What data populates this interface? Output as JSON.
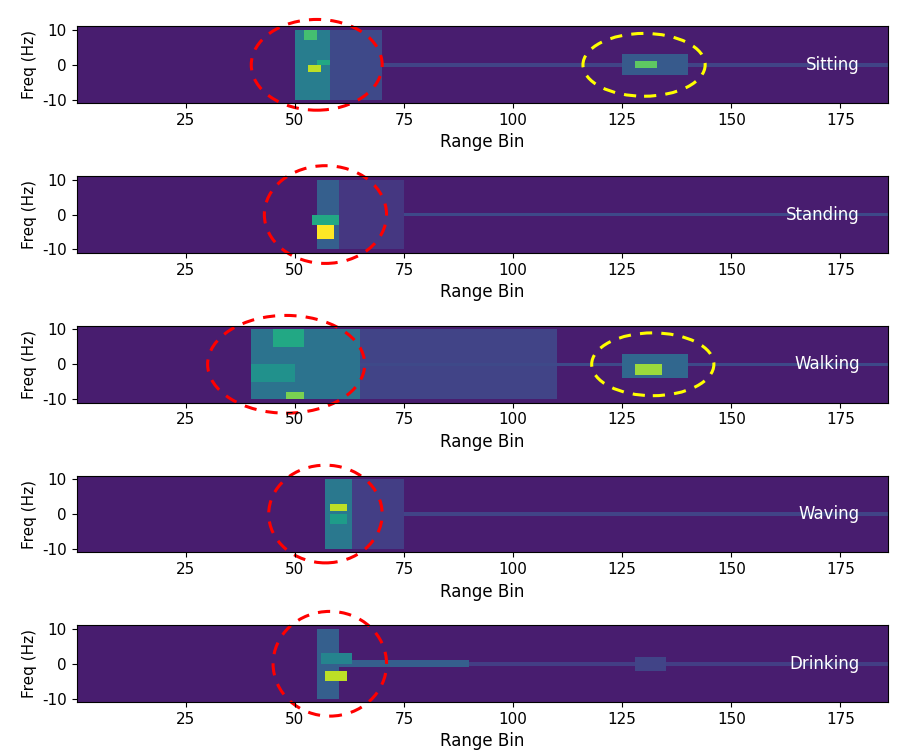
{
  "chart_data": [
    {
      "type": "heatmap",
      "annotation": "Sitting",
      "xlabel": "Range Bin",
      "ylabel": "Freq (Hz)",
      "xlim": [
        0,
        186
      ],
      "ylim": [
        -11,
        11
      ],
      "xticks": [
        25,
        50,
        75,
        100,
        125,
        150,
        175
      ],
      "yticks": [
        -10,
        0,
        10
      ],
      "color_range": [
        0,
        1
      ],
      "background": 0.08,
      "cells": [
        {
          "range": [
            60,
            186
          ],
          "freq": [
            -0.5,
            0.5
          ],
          "value": 0.2
        },
        {
          "range": [
            58,
            70
          ],
          "freq": [
            -10,
            10
          ],
          "value": 0.22
        },
        {
          "range": [
            50,
            58
          ],
          "freq": [
            -10,
            10
          ],
          "value": 0.42
        },
        {
          "range": [
            52,
            55
          ],
          "freq": [
            7,
            10
          ],
          "value": 0.7
        },
        {
          "range": [
            55,
            58
          ],
          "freq": [
            0,
            1.5
          ],
          "value": 0.6
        },
        {
          "range": [
            53,
            56
          ],
          "freq": [
            -2,
            0
          ],
          "value": 0.9
        },
        {
          "range": [
            125,
            140
          ],
          "freq": [
            -3,
            3
          ],
          "value": 0.28
        },
        {
          "range": [
            128,
            133
          ],
          "freq": [
            -1,
            1
          ],
          "value": 0.75
        }
      ]
    },
    {
      "type": "heatmap",
      "annotation": "Standing",
      "xlabel": "Range Bin",
      "ylabel": "Freq (Hz)",
      "xlim": [
        0,
        186
      ],
      "ylim": [
        -11,
        11
      ],
      "xticks": [
        25,
        50,
        75,
        100,
        125,
        150,
        175
      ],
      "yticks": [
        -10,
        0,
        10
      ],
      "color_range": [
        0,
        1
      ],
      "background": 0.08,
      "cells": [
        {
          "range": [
            60,
            186
          ],
          "freq": [
            -0.5,
            0.5
          ],
          "value": 0.22
        },
        {
          "range": [
            60,
            75
          ],
          "freq": [
            -10,
            10
          ],
          "value": 0.16
        },
        {
          "range": [
            55,
            60
          ],
          "freq": [
            -10,
            10
          ],
          "value": 0.3
        },
        {
          "range": [
            54,
            60
          ],
          "freq": [
            -3,
            0
          ],
          "value": 0.6
        },
        {
          "range": [
            55,
            59
          ],
          "freq": [
            -7,
            -3
          ],
          "value": 1.0
        }
      ]
    },
    {
      "type": "heatmap",
      "annotation": "Walking",
      "xlabel": "Range Bin",
      "ylabel": "Freq (Hz)",
      "xlim": [
        0,
        186
      ],
      "ylim": [
        -11,
        11
      ],
      "xticks": [
        25,
        50,
        75,
        100,
        125,
        150,
        175
      ],
      "yticks": [
        -10,
        0,
        10
      ],
      "color_range": [
        0,
        1
      ],
      "background": 0.08,
      "cells": [
        {
          "range": [
            65,
            110
          ],
          "freq": [
            -10,
            10
          ],
          "value": 0.2
        },
        {
          "range": [
            60,
            186
          ],
          "freq": [
            -0.5,
            0.5
          ],
          "value": 0.22
        },
        {
          "range": [
            40,
            65
          ],
          "freq": [
            -10,
            10
          ],
          "value": 0.38
        },
        {
          "range": [
            45,
            52
          ],
          "freq": [
            5,
            10
          ],
          "value": 0.6
        },
        {
          "range": [
            40,
            50
          ],
          "freq": [
            -5,
            0
          ],
          "value": 0.5
        },
        {
          "range": [
            48,
            52
          ],
          "freq": [
            -10,
            -8
          ],
          "value": 0.8
        },
        {
          "range": [
            125,
            140
          ],
          "freq": [
            -4,
            3
          ],
          "value": 0.33
        },
        {
          "range": [
            128,
            134
          ],
          "freq": [
            -3,
            0
          ],
          "value": 0.85
        }
      ]
    },
    {
      "type": "heatmap",
      "annotation": "Waving",
      "xlabel": "Range Bin",
      "ylabel": "Freq (Hz)",
      "xlim": [
        0,
        186
      ],
      "ylim": [
        -11,
        11
      ],
      "xticks": [
        25,
        50,
        75,
        100,
        125,
        150,
        175
      ],
      "yticks": [
        -10,
        0,
        10
      ],
      "color_range": [
        0,
        1
      ],
      "background": 0.08,
      "cells": [
        {
          "range": [
            60,
            186
          ],
          "freq": [
            -0.5,
            0.5
          ],
          "value": 0.2
        },
        {
          "range": [
            63,
            75
          ],
          "freq": [
            -10,
            10
          ],
          "value": 0.18
        },
        {
          "range": [
            57,
            63
          ],
          "freq": [
            -10,
            10
          ],
          "value": 0.4
        },
        {
          "range": [
            58,
            62
          ],
          "freq": [
            -3,
            0
          ],
          "value": 0.55
        },
        {
          "range": [
            58,
            62
          ],
          "freq": [
            1,
            3
          ],
          "value": 0.9
        }
      ]
    },
    {
      "type": "heatmap",
      "annotation": "Drinking",
      "xlabel": "Range Bin",
      "ylabel": "Freq (Hz)",
      "xlim": [
        0,
        186
      ],
      "ylim": [
        -11,
        11
      ],
      "xticks": [
        25,
        50,
        75,
        100,
        125,
        150,
        175
      ],
      "yticks": [
        -10,
        0,
        10
      ],
      "color_range": [
        0,
        1
      ],
      "background": 0.08,
      "cells": [
        {
          "range": [
            60,
            186
          ],
          "freq": [
            -0.5,
            0.5
          ],
          "value": 0.18
        },
        {
          "range": [
            60,
            90
          ],
          "freq": [
            -1,
            1
          ],
          "value": 0.3
        },
        {
          "range": [
            128,
            135
          ],
          "freq": [
            -2,
            2
          ],
          "value": 0.2
        },
        {
          "range": [
            55,
            60
          ],
          "freq": [
            -10,
            10
          ],
          "value": 0.3
        },
        {
          "range": [
            56,
            63
          ],
          "freq": [
            0,
            3
          ],
          "value": 0.45
        },
        {
          "range": [
            57,
            62
          ],
          "freq": [
            -5,
            -2
          ],
          "value": 0.9
        }
      ]
    }
  ]
}
